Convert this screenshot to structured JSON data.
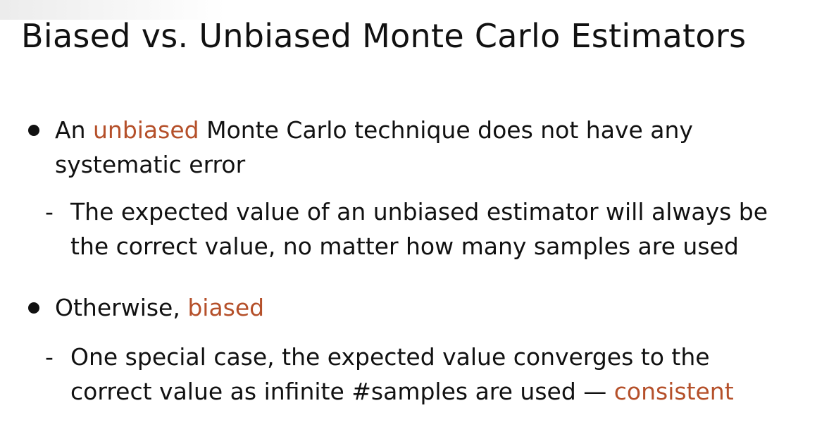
{
  "title": "Biased vs. Unbiased Monte Carlo Estimators",
  "bullets": [
    {
      "pre": "An ",
      "highlight": "unbiased",
      "post": " Monte Carlo technique does not have any",
      "line2": "systematic error"
    },
    {
      "pre": "Otherwise, ",
      "highlight": "biased"
    }
  ],
  "subs": [
    {
      "dash": "-",
      "line1": "The expected value of an unbiased estimator will always be",
      "line2": "the correct value, no matter how many samples are used"
    },
    {
      "dash": "-",
      "line1": "One special case, the expected value converges to the",
      "line2_pre": "correct value as infinite #samples are used — ",
      "line2_highlight": "consistent"
    }
  ],
  "colors": {
    "highlight": "#b5502a",
    "text": "#111111",
    "background": "#ffffff"
  }
}
